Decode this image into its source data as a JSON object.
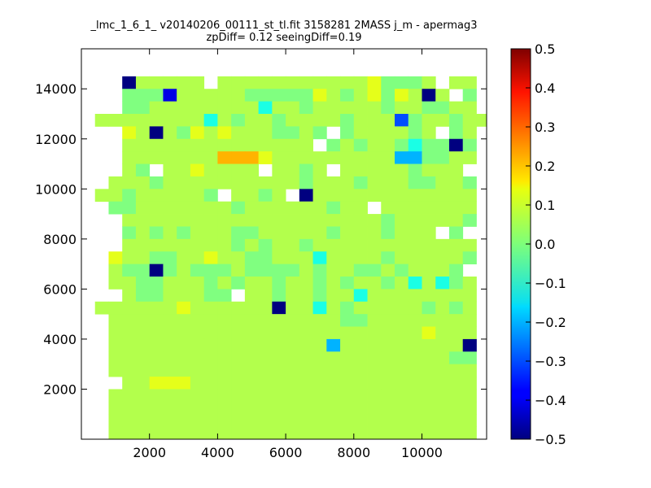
{
  "chart_data": {
    "type": "heatmap",
    "title_lines": [
      "_lmc_1_6_1_ v20140206_00111_st_tl.fit 3158281 2MASS j_m - apermag3",
      "zpDiff= 0.12 seeingDiff=0.19"
    ],
    "xlabel": "",
    "ylabel": "",
    "xlim": [
      0,
      11900
    ],
    "ylim": [
      0,
      15600
    ],
    "x_ticks": [
      2000,
      4000,
      6000,
      8000,
      10000
    ],
    "y_ticks": [
      2000,
      4000,
      6000,
      8000,
      10000,
      12000,
      14000
    ],
    "colorbar": {
      "colormap": "jet",
      "range": [
        -0.5,
        0.5
      ],
      "ticks": [
        0.5,
        0.4,
        0.3,
        0.2,
        0.1,
        0.0,
        -0.1,
        -0.2,
        -0.3,
        -0.4,
        -0.5
      ],
      "tick_labels": [
        "0.5",
        "0.4",
        "0.3",
        "0.2",
        "0.1",
        "0.0",
        "−0.1",
        "−0.2",
        "−0.3",
        "−0.4",
        "−0.5"
      ]
    },
    "grid": {
      "x_start": 0,
      "y_start": 0,
      "cell_width": 400,
      "cell_height": 500,
      "rows_top_to_bottom": [
        ". . . . . . . . . . . . . . . . . . . . . . . . . . . . . .",
        ". . . X 1 1 1 1 1 _ 1 1 1 1 1 1 1 1 1 1 1 2 0 0 0 1 _ 1 1 .",
        ". . . 0 0 0 U 1 1 1 1 1 0 0 0 0 0 2 1 0 1 2 0 2 1 X 1 _ 0 .",
        ". . . 0 0 1 1 1 1 1 1 1 1 -1 1 1 0 1 1 1 1 1 0 1 1 0 0 1 1 .",
        ". 1 1 1 1 1 1 1 1 -1 1 0 1 1 0 1 1 1 1 0 1 1 1 -3 0 1 1 0 1 1",
        ". . . 2 1 X 1 0 2 1 2 1 1 1 0 0 1 0 _ 0 1 1 1 1 0 1 _ 0 1 .",
        ". . . 1 1 1 1 1 1 1 1 1 1 1 1 1 1 _ 0 1 0 1 1 0 -1 0 0 X 0 .",
        ". . . 1 1 1 1 1 1 1 3 3 3 2 1 1 1 1 1 1 1 1 1 -2 -2 0 0 1 1 .",
        ". . . 1 0 _ 1 1 2 1 1 1 1 _ 1 1 0 1 _ 1 1 1 1 1 0 1 1 1 _ .",
        ". . 1 1 1 0 1 1 1 1 1 1 1 1 1 1 0 1 1 1 0 1 1 1 0 0 1 1 0 .",
        ". 1 1 0 1 1 1 1 1 0 _ 1 1 0 1 _ X 1 1 1 1 1 1 1 1 1 1 1 1 .",
        ". . 0 0 1 1 1 1 1 1 1 0 1 1 1 1 1 1 0 1 1 _ 1 1 1 1 1 1 1 .",
        ". . _ 1 1 1 1 1 1 1 1 1 1 1 1 1 1 1 1 1 1 1 0 1 1 1 1 1 0 .",
        ". . . 0 1 0 1 0 1 1 1 0 0 1 1 1 1 1 0 1 1 1 0 1 1 1 _ 0 .",
        ". . . 1 1 1 1 1 1 1 1 0 1 0 1 1 0 1 1 1 1 1 1 1 1 1 1 1 1 .",
        ". . 2 1 1 0 0 1 1 2 1 1 0 0 1 1 1 -1 1 1 1 1 0 1 1 1 1 1 0 .",
        ". . 1 0 0 X 0 1 0 0 0 1 0 0 0 0 1 0 1 1 0 0 1 0 1 1 1 0 .",
        ". . 1 1 0 0 1 1 1 0 1 0 1 1 0 1 1 0 1 0 1 1 0 1 -1 1 -1 0 1 .",
        ". . . 1 0 0 1 1 1 0 0 _ 1 1 0 1 1 0 1 1 -1 1 1 1 1 1 1 1 1 .",
        ". 1 1 1 1 1 1 2 1 1 1 1 1 1 X 1 1 -1 1 0 1 1 1 1 1 0 1 0 1 .",
        ". . 1 1 1 1 1 1 1 1 1 1 1 1 1 1 1 1 1 0 0 1 1 1 1 1 1 1 1 .",
        ". . 1 1 1 1 1 1 1 1 1 1 1 1 1 1 1 1 1 1 1 1 1 1 1 2 1 1 1 .",
        ". . 1 1 1 1 1 1 1 1 1 1 1 1 1 1 1 1 -2 1 1 1 1 1 1 1 1 1 X .",
        ". . 1 1 1 1 1 1 1 1 1 1 1 1 1 1 1 1 1 1 1 1 1 1 1 1 1 0 0 .",
        ". . 1 1 1 1 1 1 1 1 1 1 1 1 1 1 1 1 1 1 1 1 1 1 1 1 1 1 1 .",
        ". . _ 1 1 2 2 2 1 1 1 1 1 1 1 1 1 1 1 1 1 1 1 1 1 1 1 1 1 .",
        ". . 1 1 1 1 1 1 1 1 1 1 1 1 1 1 1 1 1 1 1 1 1 1 1 1 1 1 1 .",
        ". . 1 1 1 1 1 1 1 1 1 1 1 1 1 1 1 1 1 1 1 1 1 1 1 1 1 1 1 .",
        ". . 1 1 1 1 1 1 1 1 1 1 1 1 1 1 1 1 1 1 1 1 1 1 1 1 1 1 1 .",
        ". . 1 1 1 1 1 1 1 1 1 1 1 1 1 1 1 1 1 1 1 1 1 1 1 1 1 1 1 ."
      ],
      "legend": {
        ".": null,
        "_": null,
        "X": -0.5,
        "U": -0.4,
        "-3": -0.3,
        "-2": -0.2,
        "-1": -0.1,
        "0": 0.0,
        "1": 0.05,
        "2": 0.1,
        "3": 0.2
      }
    }
  }
}
